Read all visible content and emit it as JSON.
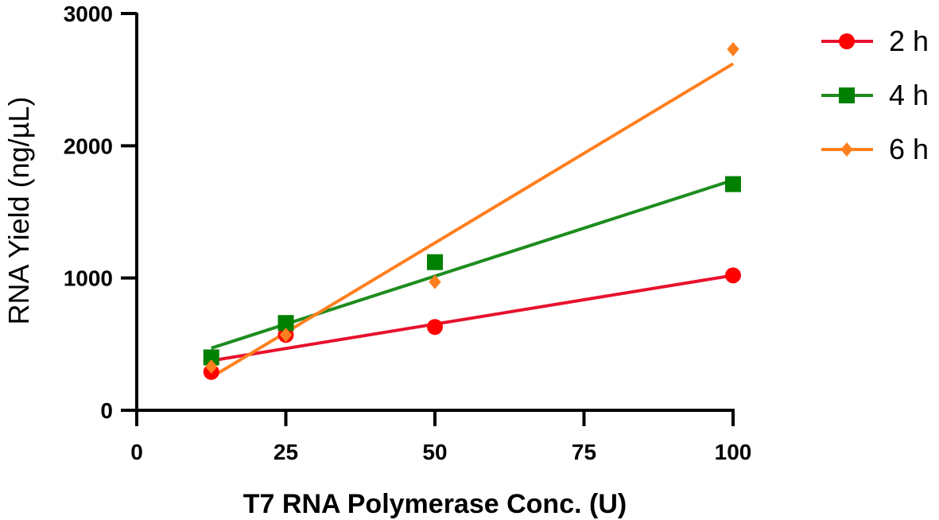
{
  "chart_data": {
    "type": "scatter",
    "xlabel": "T7 RNA Polymerase Conc. (U)",
    "ylabel": "RNA Yield (ng/µL)",
    "xlim": [
      0,
      100
    ],
    "ylim": [
      0,
      3000
    ],
    "xticks": [
      "0",
      "25",
      "50",
      "75",
      "100"
    ],
    "yticks": [
      "0",
      "1000",
      "2000",
      "3000"
    ],
    "grid": false,
    "legend_position": "right",
    "series": [
      {
        "name": "2 h",
        "color": "#ff0000",
        "line_color": "#e8112d",
        "marker": "circle",
        "x": [
          12.5,
          25,
          50,
          100
        ],
        "y": [
          290,
          570,
          630,
          1020
        ],
        "fit": [
          [
            12.5,
            375
          ],
          [
            100,
            1020
          ]
        ]
      },
      {
        "name": "4 h",
        "color": "#008000",
        "line_color": "#1e8c1e",
        "marker": "square",
        "x": [
          12.5,
          25,
          50,
          100
        ],
        "y": [
          400,
          660,
          1120,
          1710
        ],
        "fit": [
          [
            12.5,
            470
          ],
          [
            100,
            1740
          ]
        ]
      },
      {
        "name": "6 h",
        "color": "#ff7f1e",
        "line_color": "#ff7f1e",
        "marker": "diamond",
        "x": [
          12.5,
          25,
          50,
          100
        ],
        "y": [
          330,
          570,
          970,
          2730
        ],
        "fit": [
          [
            12.5,
            250
          ],
          [
            100,
            2620
          ]
        ]
      }
    ]
  }
}
